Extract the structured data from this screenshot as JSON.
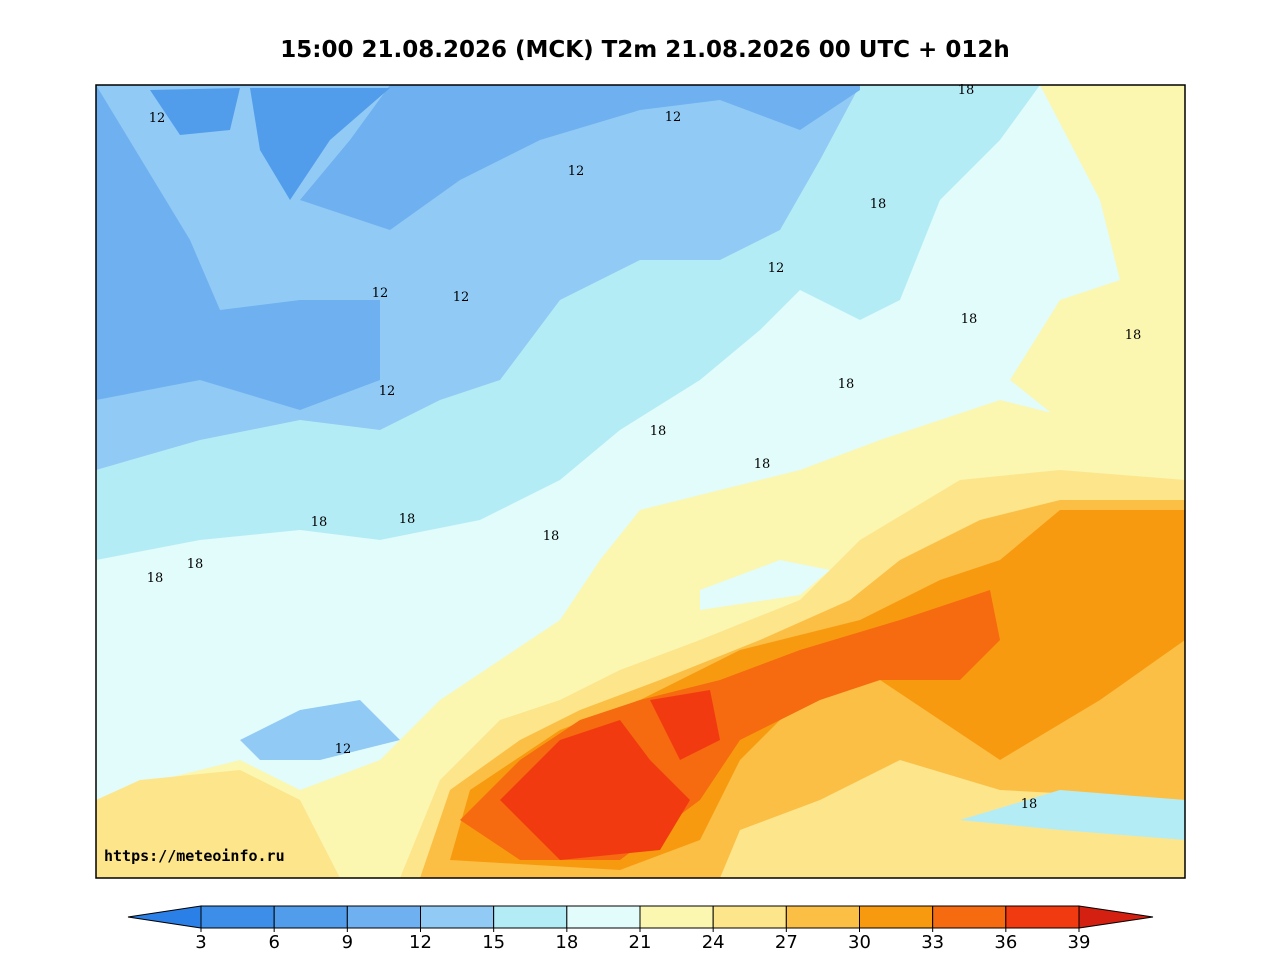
{
  "title": "15:00 21.08.2026 (MCK) T2m 21.08.2026 00 UTC + 012h",
  "watermark": "https://meteoinfo.ru",
  "contour_labels": [
    12,
    12,
    12,
    18,
    18,
    12,
    12,
    12,
    18,
    18,
    18,
    12,
    18,
    18,
    18,
    18,
    18,
    18,
    18,
    12,
    18
  ],
  "colorbar": {
    "ticks": [
      3,
      6,
      9,
      12,
      15,
      18,
      21,
      24,
      27,
      30,
      33,
      36,
      39
    ],
    "colors": [
      "#2b80e8",
      "#3d8ee8",
      "#519dec",
      "#6eb0f0",
      "#91caf4",
      "#b4ecf6",
      "#e2fcfc",
      "#fbf6b0",
      "#fde58c",
      "#fbbf45",
      "#f89a10",
      "#f66a10",
      "#f23a10",
      "#d42010"
    ]
  }
}
